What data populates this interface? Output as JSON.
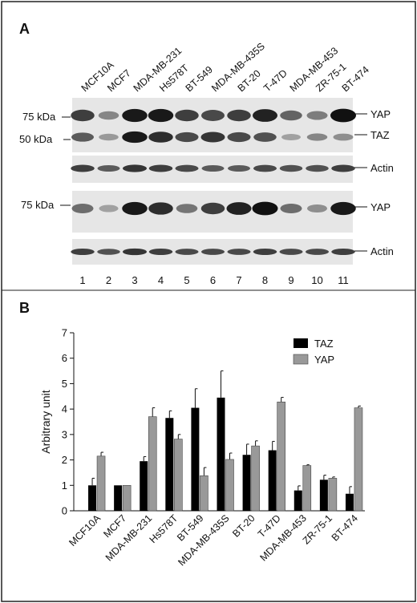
{
  "panel_a": {
    "letter": "A",
    "lanes": [
      "MCF10A",
      "MCF7",
      "MDA-MB-231",
      "Hs578T",
      "BT-549",
      "MDA-MB-435S",
      "BT-20",
      "T-47D",
      "MDA-MB-453",
      "ZR-75-1",
      "BT-474"
    ],
    "lane_numbers": [
      "1",
      "2",
      "3",
      "4",
      "5",
      "6",
      "7",
      "8",
      "9",
      "10",
      "11"
    ],
    "blot1": {
      "markers": [
        "75 kDa",
        "50 kDa"
      ],
      "bands": [
        "YAP",
        "TAZ"
      ],
      "yap_intensity": [
        0.75,
        0.35,
        0.95,
        0.95,
        0.75,
        0.7,
        0.75,
        0.9,
        0.55,
        0.4,
        1.0
      ],
      "taz_intensity": [
        0.6,
        0.25,
        0.95,
        0.85,
        0.7,
        0.8,
        0.7,
        0.65,
        0.2,
        0.35,
        0.3
      ]
    },
    "actin1": {
      "label": "Actin",
      "intensity": [
        0.75,
        0.6,
        0.8,
        0.75,
        0.7,
        0.6,
        0.6,
        0.7,
        0.65,
        0.65,
        0.75
      ]
    },
    "blot2": {
      "markers": [
        "75 kDa"
      ],
      "band": "YAP",
      "intensity": [
        0.5,
        0.2,
        0.95,
        0.85,
        0.45,
        0.75,
        0.9,
        1.0,
        0.5,
        0.3,
        0.95
      ]
    },
    "actin2": {
      "label": "Actin",
      "intensity": [
        0.75,
        0.65,
        0.8,
        0.75,
        0.7,
        0.7,
        0.7,
        0.75,
        0.7,
        0.7,
        0.75
      ]
    },
    "colors": {
      "band": "#111111",
      "background": "#e6e6e6"
    }
  },
  "chart_data": {
    "panel_letter": "B",
    "type": "bar",
    "categories": [
      "MCF10A",
      "MCF7",
      "MDA-MB-231",
      "Hs578T",
      "BT-549",
      "MDA-MB-435S",
      "BT-20",
      "T-47D",
      "MDA-MB-453",
      "ZR-75-1",
      "BT-474"
    ],
    "series": [
      {
        "name": "TAZ",
        "color": "#000000",
        "values": [
          1.0,
          1.0,
          1.95,
          3.65,
          4.05,
          4.45,
          2.2,
          2.38,
          0.8,
          1.22,
          0.67
        ],
        "errors": [
          0.28,
          0.0,
          0.18,
          0.28,
          0.75,
          1.05,
          0.42,
          0.35,
          0.18,
          0.18,
          0.28
        ]
      },
      {
        "name": "YAP",
        "color": "#999999",
        "values": [
          2.15,
          1.0,
          3.7,
          2.82,
          1.38,
          2.02,
          2.55,
          4.28,
          1.78,
          1.28,
          4.05
        ],
        "errors": [
          0.15,
          0.0,
          0.35,
          0.18,
          0.32,
          0.25,
          0.2,
          0.18,
          0.03,
          0.05,
          0.07
        ]
      }
    ],
    "ylabel": "Arbitrary unit",
    "xlabel": "",
    "ylim": [
      0,
      7
    ],
    "yticks": [
      "0",
      "1",
      "2",
      "3",
      "4",
      "5",
      "6",
      "7"
    ],
    "legend": "top-right",
    "grid": false
  }
}
